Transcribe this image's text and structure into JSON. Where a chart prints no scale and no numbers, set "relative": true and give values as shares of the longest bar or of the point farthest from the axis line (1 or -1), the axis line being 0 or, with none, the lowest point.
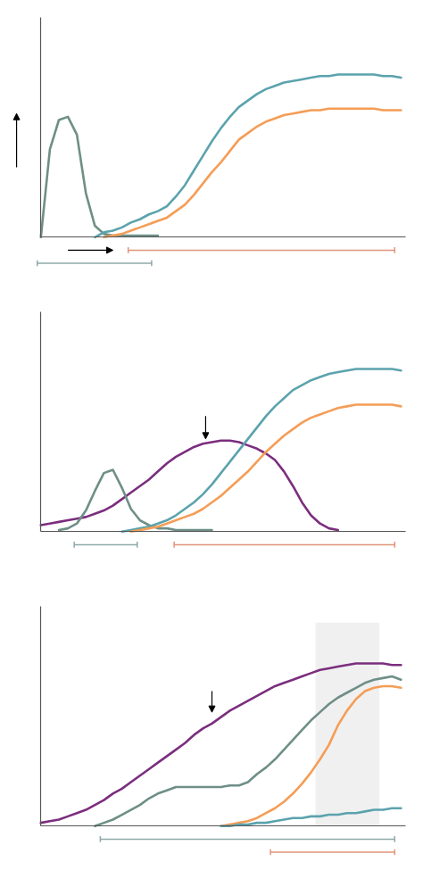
{
  "chart_data": [
    {
      "type": "line",
      "relative": true,
      "grid": false,
      "categories": [
        null,
        null,
        null,
        null,
        null,
        null,
        null,
        null,
        null,
        null,
        null,
        null,
        null,
        null,
        null,
        null,
        null,
        null,
        null,
        null,
        null,
        null,
        null,
        null,
        null,
        null,
        null,
        null,
        null,
        null,
        null,
        null,
        null,
        null,
        null,
        null,
        null,
        null,
        null,
        null,
        null
      ],
      "series": [
        {
          "color": "#6e8f87",
          "values": [
            0,
            0.54,
            0.72,
            0.74,
            0.63,
            0.27,
            0.07,
            0.02,
            0.01,
            0.01,
            0.01,
            0.01,
            0.01,
            0.01,
            null,
            null,
            null,
            null,
            null,
            null,
            null,
            null,
            null,
            null,
            null,
            null,
            null,
            null,
            null,
            null,
            null,
            null,
            null,
            null,
            null,
            null,
            null,
            null,
            null,
            null,
            null
          ]
        },
        {
          "color": "#5ba3ad",
          "values": [
            null,
            null,
            null,
            null,
            null,
            null,
            0,
            0.03,
            0.04,
            0.06,
            0.09,
            0.11,
            0.14,
            0.16,
            0.19,
            0.25,
            0.32,
            0.41,
            0.5,
            0.59,
            0.67,
            0.74,
            0.8,
            0.84,
            0.88,
            0.91,
            0.93,
            0.95,
            0.96,
            0.97,
            0.98,
            0.99,
            0.99,
            1,
            1,
            1,
            1,
            1,
            0.99,
            0.99,
            0.98
          ]
        },
        {
          "color": "#f59d56",
          "values": [
            null,
            null,
            null,
            null,
            null,
            null,
            null,
            0,
            0.01,
            0.02,
            0.04,
            0.06,
            0.08,
            0.1,
            0.12,
            0.16,
            0.2,
            0.26,
            0.33,
            0.4,
            0.46,
            0.53,
            0.6,
            0.64,
            0.68,
            0.71,
            0.73,
            0.75,
            0.76,
            0.77,
            0.78,
            0.78,
            0.79,
            0.79,
            0.79,
            0.79,
            0.79,
            0.79,
            0.78,
            0.78,
            0.78
          ]
        }
      ]
    },
    {
      "type": "line",
      "relative": true,
      "grid": false,
      "categories": [
        null,
        null,
        null,
        null,
        null,
        null,
        null,
        null,
        null,
        null,
        null,
        null,
        null,
        null,
        null,
        null,
        null,
        null,
        null,
        null,
        null,
        null,
        null,
        null,
        null,
        null,
        null,
        null,
        null,
        null,
        null,
        null,
        null,
        null,
        null,
        null,
        null,
        null,
        null,
        null,
        null
      ],
      "series": [
        {
          "color": "#7b2e7e",
          "values": [
            0.04,
            0.05,
            0.06,
            0.07,
            0.08,
            0.09,
            0.11,
            0.13,
            0.16,
            0.2,
            0.24,
            0.28,
            0.32,
            0.37,
            0.42,
            0.46,
            0.49,
            0.52,
            0.54,
            0.55,
            0.56,
            0.56,
            0.55,
            0.53,
            0.51,
            0.48,
            0.44,
            0.37,
            0.28,
            0.18,
            0.1,
            0.05,
            0.02,
            0.01,
            null,
            null,
            null,
            null,
            null,
            null,
            null
          ]
        },
        {
          "color": "#6e8f87",
          "values": [
            null,
            null,
            0.01,
            0.02,
            0.05,
            0.13,
            0.25,
            0.36,
            0.38,
            0.27,
            0.14,
            0.07,
            0.04,
            0.02,
            0.02,
            0.01,
            0.01,
            0.01,
            0.01,
            0.01,
            null,
            null,
            null,
            null,
            null,
            null,
            null,
            null,
            null,
            null,
            null,
            null,
            null,
            null,
            null,
            null,
            null,
            null,
            null,
            null,
            null
          ]
        },
        {
          "color": "#5ba3ad",
          "values": [
            null,
            null,
            null,
            null,
            null,
            null,
            null,
            null,
            null,
            0,
            0.01,
            0.02,
            0.03,
            0.05,
            0.07,
            0.1,
            0.14,
            0.18,
            0.23,
            0.29,
            0.36,
            0.43,
            0.5,
            0.57,
            0.64,
            0.71,
            0.77,
            0.82,
            0.87,
            0.9,
            0.93,
            0.95,
            0.97,
            0.98,
            0.99,
            1,
            1,
            1,
            1,
            1,
            0.99
          ]
        },
        {
          "color": "#f59d56",
          "values": [
            null,
            null,
            null,
            null,
            null,
            null,
            null,
            null,
            null,
            null,
            0,
            0.01,
            0.02,
            0.03,
            0.05,
            0.07,
            0.09,
            0.11,
            0.14,
            0.18,
            0.22,
            0.27,
            0.32,
            0.37,
            0.43,
            0.49,
            0.54,
            0.59,
            0.63,
            0.67,
            0.7,
            0.72,
            0.74,
            0.76,
            0.77,
            0.78,
            0.78,
            0.78,
            0.78,
            0.78,
            0.77
          ]
        }
      ]
    },
    {
      "type": "line",
      "relative": true,
      "grid": false,
      "categories": [
        null,
        null,
        null,
        null,
        null,
        null,
        null,
        null,
        null,
        null,
        null,
        null,
        null,
        null,
        null,
        null,
        null,
        null,
        null,
        null,
        null,
        null,
        null,
        null,
        null,
        null,
        null,
        null,
        null,
        null,
        null,
        null,
        null,
        null,
        null,
        null,
        null,
        null,
        null,
        null,
        null
      ],
      "series": [
        {
          "color": "#7b2e7e",
          "values": [
            0.02,
            0.03,
            0.04,
            0.06,
            0.08,
            0.1,
            0.13,
            0.16,
            0.2,
            0.23,
            0.27,
            0.31,
            0.35,
            0.39,
            0.43,
            0.47,
            0.51,
            0.56,
            0.6,
            0.63,
            0.67,
            0.71,
            0.74,
            0.77,
            0.8,
            0.83,
            0.86,
            0.88,
            0.9,
            0.92,
            0.94,
            0.96,
            0.97,
            0.98,
            0.99,
            1,
            1,
            1,
            1,
            0.99,
            0.99
          ]
        },
        {
          "color": "#6e8f87",
          "values": [
            null,
            null,
            null,
            null,
            null,
            null,
            0,
            0.02,
            0.04,
            0.07,
            0.1,
            0.13,
            0.17,
            0.2,
            0.22,
            0.24,
            0.24,
            0.24,
            0.24,
            0.24,
            0.24,
            0.25,
            0.25,
            0.27,
            0.32,
            0.36,
            0.41,
            0.47,
            0.53,
            0.59,
            0.65,
            0.7,
            0.75,
            0.79,
            0.82,
            0.85,
            0.88,
            0.9,
            0.91,
            0.92,
            0.9
          ]
        },
        {
          "color": "#f59d56",
          "values": [
            null,
            null,
            null,
            null,
            null,
            null,
            null,
            null,
            null,
            null,
            null,
            null,
            null,
            null,
            null,
            null,
            null,
            null,
            null,
            null,
            0,
            0.01,
            0.02,
            0.03,
            0.05,
            0.08,
            0.11,
            0.15,
            0.2,
            0.26,
            0.33,
            0.41,
            0.5,
            0.62,
            0.71,
            0.78,
            0.83,
            0.85,
            0.86,
            0.86,
            0.85
          ]
        },
        {
          "color": "#5ba3ad",
          "values": [
            null,
            null,
            null,
            null,
            null,
            null,
            null,
            null,
            null,
            null,
            null,
            null,
            null,
            null,
            null,
            null,
            null,
            null,
            null,
            null,
            0,
            0,
            0.01,
            0.01,
            0.02,
            0.02,
            0.03,
            0.04,
            0.05,
            0.05,
            0.06,
            0.06,
            0.07,
            0.07,
            0.08,
            0.08,
            0.09,
            0.1,
            0.1,
            0.11,
            0.11
          ]
        }
      ]
    }
  ]
}
